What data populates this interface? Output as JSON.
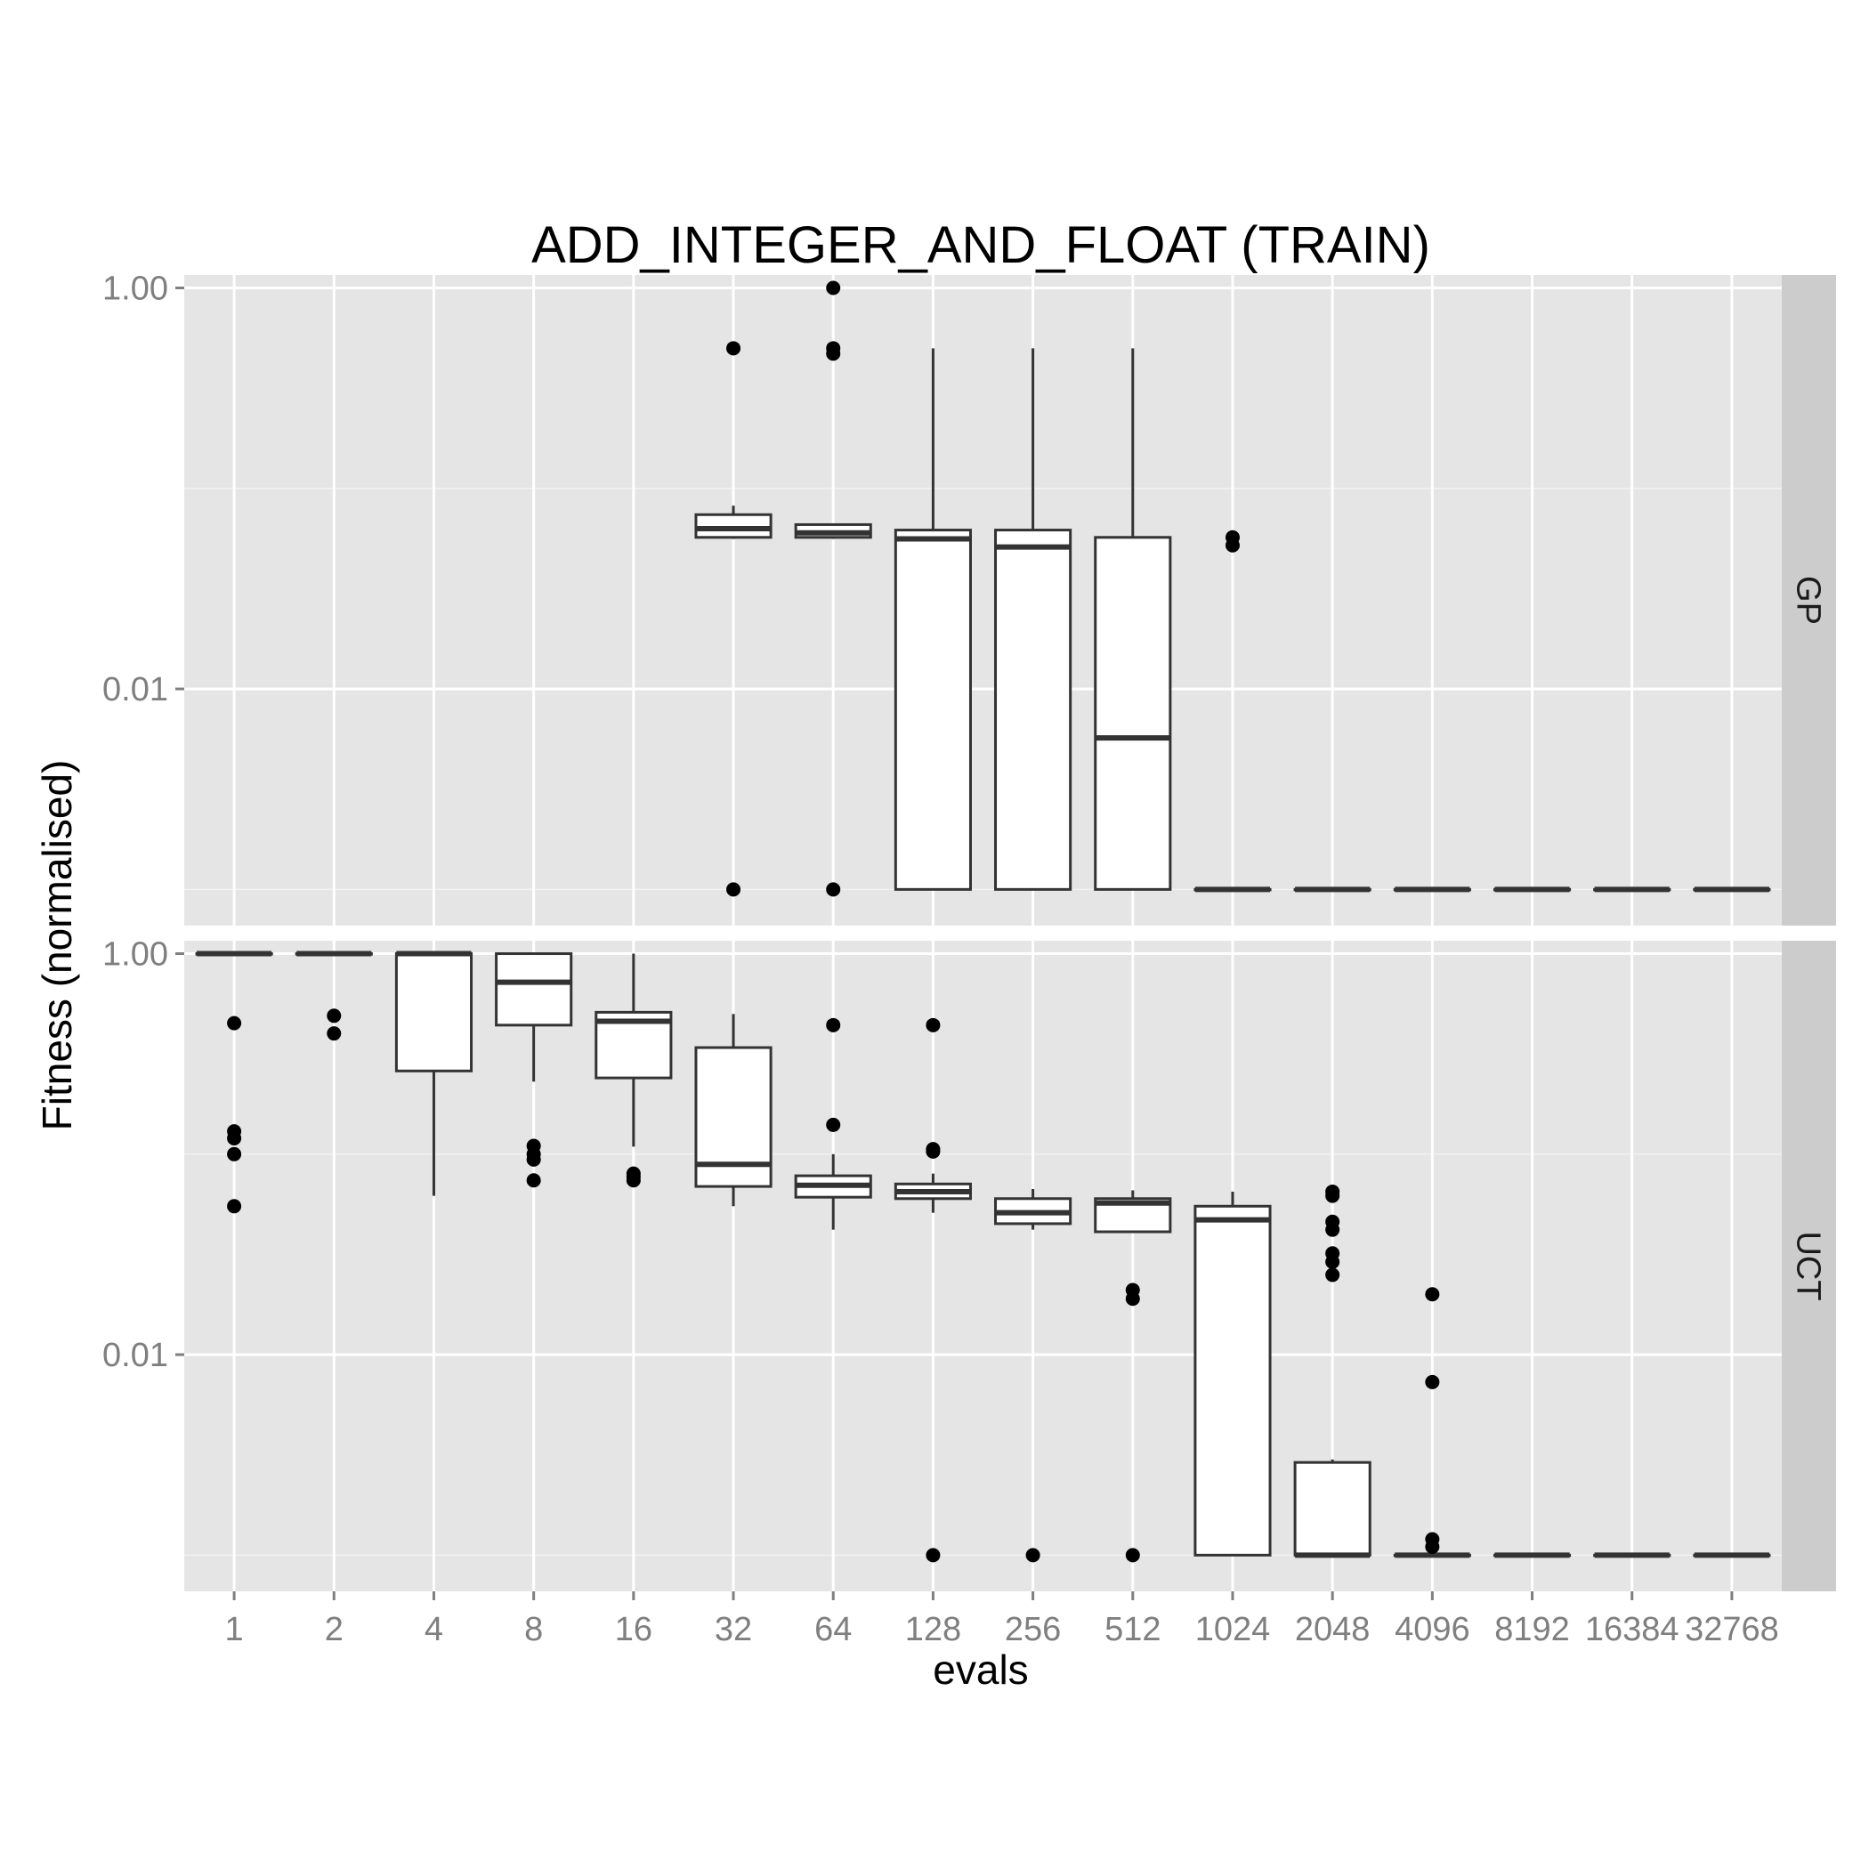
{
  "chart_data": {
    "type": "boxplot",
    "title": "ADD_INTEGER_AND_FLOAT (TRAIN)",
    "xlabel": "evals",
    "ylabel": "Fitness (normalised)",
    "y_scale": "log10",
    "y_ticks": [
      {
        "value": 1,
        "label": "1.00"
      },
      {
        "value": 0.01,
        "label": "0.01"
      }
    ],
    "grid": true,
    "categories": [
      "1",
      "2",
      "4",
      "8",
      "16",
      "32",
      "64",
      "128",
      "256",
      "512",
      "1024",
      "2048",
      "4096",
      "8192",
      "16384",
      "32768"
    ],
    "panels": [
      {
        "label": "GP",
        "ylim": [
          0.00066,
          1.16
        ],
        "boxes": [
          null,
          null,
          null,
          null,
          null,
          {
            "min": 0.056,
            "q1": 0.057,
            "median": 0.063,
            "q3": 0.074,
            "max": 0.082,
            "outliers": [
              0.5,
              0.001
            ]
          },
          {
            "min": 0.056,
            "q1": 0.057,
            "median": 0.06,
            "q3": 0.066,
            "max": 0.067,
            "outliers": [
              1.0,
              0.5,
              0.47,
              0.001
            ]
          },
          {
            "min": 0.001,
            "q1": 0.001,
            "median": 0.056,
            "q3": 0.062,
            "max": 0.5,
            "outliers": []
          },
          {
            "min": 0.001,
            "q1": 0.001,
            "median": 0.051,
            "q3": 0.062,
            "max": 0.5,
            "outliers": []
          },
          {
            "min": 0.001,
            "q1": 0.001,
            "median": 0.0057,
            "q3": 0.057,
            "max": 0.5,
            "outliers": []
          },
          {
            "min": 0.001,
            "q1": 0.001,
            "median": 0.001,
            "q3": 0.001,
            "max": 0.001,
            "outliers": [
              0.057,
              0.052
            ]
          },
          {
            "min": 0.001,
            "q1": 0.001,
            "median": 0.001,
            "q3": 0.001,
            "max": 0.001,
            "outliers": []
          },
          {
            "min": 0.001,
            "q1": 0.001,
            "median": 0.001,
            "q3": 0.001,
            "max": 0.001,
            "outliers": []
          },
          {
            "min": 0.001,
            "q1": 0.001,
            "median": 0.001,
            "q3": 0.001,
            "max": 0.001,
            "outliers": []
          },
          {
            "min": 0.001,
            "q1": 0.001,
            "median": 0.001,
            "q3": 0.001,
            "max": 0.001,
            "outliers": []
          },
          {
            "min": 0.001,
            "q1": 0.001,
            "median": 0.001,
            "q3": 0.001,
            "max": 0.001,
            "outliers": []
          }
        ]
      },
      {
        "label": "UCT",
        "ylim": [
          0.00066,
          1.16
        ],
        "boxes": [
          {
            "min": 1.0,
            "q1": 1.0,
            "median": 1.0,
            "q3": 1.0,
            "max": 1.0,
            "outliers": [
              0.45,
              0.13,
              0.12,
              0.1,
              0.055
            ]
          },
          {
            "min": 1.0,
            "q1": 1.0,
            "median": 1.0,
            "q3": 1.0,
            "max": 1.0,
            "outliers": [
              0.49,
              0.4
            ]
          },
          {
            "min": 0.062,
            "q1": 0.26,
            "median": 1.0,
            "q3": 1.0,
            "max": 1.0,
            "outliers": []
          },
          {
            "min": 0.23,
            "q1": 0.44,
            "median": 0.72,
            "q3": 1.0,
            "max": 1.0,
            "outliers": [
              0.11,
              0.1,
              0.094,
              0.074
            ]
          },
          {
            "min": 0.109,
            "q1": 0.24,
            "median": 0.46,
            "q3": 0.51,
            "max": 1.0,
            "outliers": [
              0.08,
              0.077,
              0.074
            ]
          },
          {
            "min": 0.055,
            "q1": 0.069,
            "median": 0.089,
            "q3": 0.34,
            "max": 0.5,
            "outliers": []
          },
          {
            "min": 0.042,
            "q1": 0.061,
            "median": 0.07,
            "q3": 0.078,
            "max": 0.1,
            "outliers": [
              0.44,
              0.14
            ]
          },
          {
            "min": 0.051,
            "q1": 0.06,
            "median": 0.065,
            "q3": 0.071,
            "max": 0.08,
            "outliers": [
              0.44,
              0.106,
              0.103,
              0.001
            ]
          },
          {
            "min": 0.042,
            "q1": 0.045,
            "median": 0.051,
            "q3": 0.06,
            "max": 0.067,
            "outliers": [
              0.001
            ]
          },
          {
            "min": 0.041,
            "q1": 0.041,
            "median": 0.057,
            "q3": 0.06,
            "max": 0.066,
            "outliers": [
              0.021,
              0.019,
              0.001
            ]
          },
          {
            "min": 0.001,
            "q1": 0.001,
            "median": 0.047,
            "q3": 0.055,
            "max": 0.065,
            "outliers": []
          },
          {
            "min": 0.001,
            "q1": 0.001,
            "median": 0.001,
            "q3": 0.0029,
            "max": 0.003,
            "outliers": [
              0.065,
              0.062,
              0.046,
              0.042,
              0.032,
              0.029,
              0.025
            ]
          },
          {
            "min": 0.001,
            "q1": 0.001,
            "median": 0.001,
            "q3": 0.001,
            "max": 0.001,
            "outliers": [
              0.02,
              0.0073,
              0.0012,
              0.0011
            ]
          },
          {
            "min": 0.001,
            "q1": 0.001,
            "median": 0.001,
            "q3": 0.001,
            "max": 0.001,
            "outliers": []
          },
          {
            "min": 0.001,
            "q1": 0.001,
            "median": 0.001,
            "q3": 0.001,
            "max": 0.001,
            "outliers": []
          },
          {
            "min": 0.001,
            "q1": 0.001,
            "median": 0.001,
            "q3": 0.001,
            "max": 0.001,
            "outliers": []
          }
        ]
      }
    ]
  }
}
